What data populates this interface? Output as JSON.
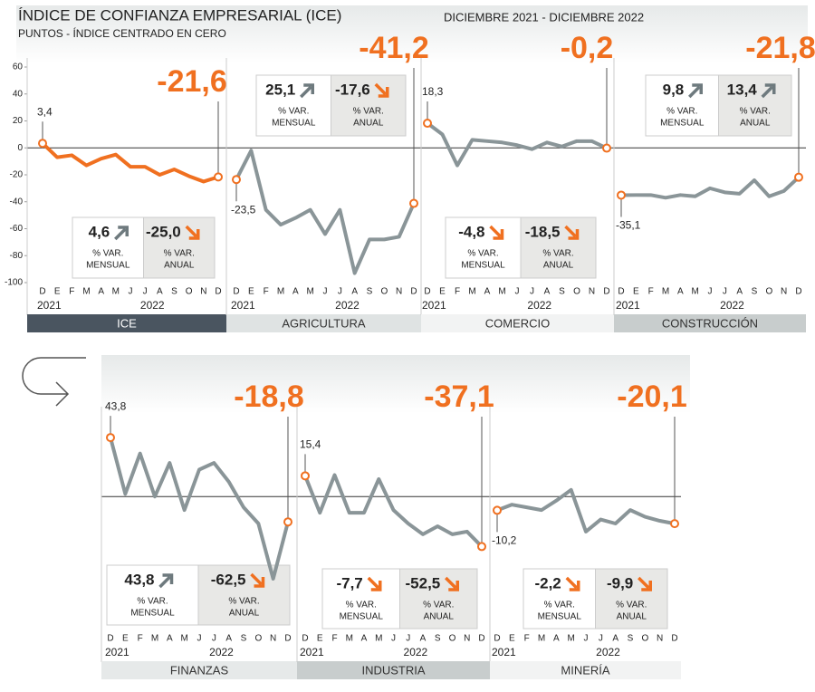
{
  "header": {
    "title": "ÍNDICE DE CONFIANZA EMPRESARIAL (ICE)",
    "subtitle": "PUNTOS - ÍNDICE CENTRADO EN CERO",
    "period": "DICIEMBRE 2021 - DICIEMBRE 2022"
  },
  "captions": {
    "var": "% VAR.",
    "monthly": "MENSUAL",
    "annual": "ANUAL"
  },
  "chart_data": [
    {
      "type": "line",
      "name": "ICE",
      "color": "#f07020",
      "categories": [
        "D",
        "E",
        "F",
        "M",
        "A",
        "M",
        "J",
        "J",
        "A",
        "S",
        "O",
        "N",
        "D"
      ],
      "years": [
        "2021",
        "2022"
      ],
      "values": [
        3.4,
        -7,
        -5.5,
        -13,
        -8,
        -5,
        -14,
        -14,
        -20,
        -16,
        -21,
        -25,
        -21.6
      ],
      "value_labels": [
        "3,4",
        null,
        null,
        null,
        null,
        null,
        null,
        null,
        null,
        null,
        null,
        null,
        "-21,6"
      ],
      "monthly": {
        "value": 4.6,
        "label": "4,6"
      },
      "annual": {
        "value": -25.0,
        "label": "-25,0"
      },
      "ylim": [
        -100,
        60
      ],
      "yticks": [
        60,
        40,
        20,
        0,
        -20,
        -40,
        -60,
        -80,
        -100
      ]
    },
    {
      "type": "line",
      "name": "AGRICULTURA",
      "color": "#8a9598",
      "categories": [
        "D",
        "E",
        "F",
        "M",
        "A",
        "M",
        "J",
        "J",
        "A",
        "S",
        "O",
        "N",
        "D"
      ],
      "years": [
        "2021",
        "2022"
      ],
      "values": [
        -23.5,
        -2,
        -46,
        -57,
        -52,
        -46,
        -64,
        -46,
        -93,
        -68,
        -68,
        -66,
        -41.2
      ],
      "value_labels": [
        "-23,5",
        null,
        null,
        null,
        null,
        null,
        null,
        null,
        null,
        null,
        null,
        null,
        "-41,2"
      ],
      "monthly": {
        "value": 25.1,
        "label": "25,1"
      },
      "annual": {
        "value": -17.6,
        "label": "-17,6"
      },
      "ylim": [
        -100,
        60
      ]
    },
    {
      "type": "line",
      "name": "COMERCIO",
      "color": "#8a9598",
      "categories": [
        "D",
        "E",
        "F",
        "M",
        "A",
        "M",
        "J",
        "J",
        "A",
        "S",
        "O",
        "N",
        "D"
      ],
      "years": [
        "2021",
        "2022"
      ],
      "values": [
        18.3,
        10,
        -13,
        6,
        5,
        4,
        2,
        -1,
        4,
        1,
        5,
        5,
        -0.2
      ],
      "value_labels": [
        "18,3",
        null,
        null,
        null,
        null,
        null,
        null,
        null,
        null,
        null,
        null,
        null,
        "-0,2"
      ],
      "monthly": {
        "value": -4.8,
        "label": "-4,8"
      },
      "annual": {
        "value": -18.5,
        "label": "-18,5"
      },
      "ylim": [
        -100,
        60
      ]
    },
    {
      "type": "line",
      "name": "CONSTRUCCIÓN",
      "color": "#8a9598",
      "categories": [
        "D",
        "E",
        "F",
        "M",
        "A",
        "M",
        "J",
        "J",
        "A",
        "S",
        "O",
        "N",
        "D"
      ],
      "years": [
        "2021",
        "2022"
      ],
      "values": [
        -35.1,
        -35,
        -35,
        -37,
        -35,
        -36,
        -30,
        -33,
        -34,
        -24,
        -36,
        -32,
        -21.8
      ],
      "value_labels": [
        "-35,1",
        null,
        null,
        null,
        null,
        null,
        null,
        null,
        null,
        null,
        null,
        null,
        "-21,8"
      ],
      "monthly": {
        "value": 9.8,
        "label": "9,8"
      },
      "annual": {
        "value": 13.4,
        "label": "13,4"
      },
      "ylim": [
        -100,
        60
      ]
    },
    {
      "type": "line",
      "name": "FINANZAS",
      "color": "#8a9598",
      "categories": [
        "D",
        "E",
        "F",
        "M",
        "A",
        "M",
        "J",
        "J",
        "A",
        "S",
        "O",
        "N",
        "D"
      ],
      "years": [
        "2021",
        "2022"
      ],
      "values": [
        43.8,
        2,
        32,
        0,
        25,
        -10,
        20,
        25,
        11,
        -8,
        -20,
        -61,
        -18.8
      ],
      "value_labels": [
        "43,8",
        null,
        null,
        null,
        null,
        null,
        null,
        null,
        null,
        null,
        null,
        null,
        "-18,8"
      ],
      "monthly": {
        "value": 43.8,
        "label": "43,8"
      },
      "annual": {
        "value": -62.5,
        "label": "-62,5"
      },
      "ylim": [
        -100,
        60
      ]
    },
    {
      "type": "line",
      "name": "INDUSTRIA",
      "color": "#8a9598",
      "categories": [
        "D",
        "E",
        "F",
        "M",
        "A",
        "M",
        "J",
        "J",
        "A",
        "S",
        "O",
        "N",
        "D"
      ],
      "years": [
        "2021",
        "2022"
      ],
      "values": [
        15.4,
        -12,
        16,
        -12,
        -12,
        13,
        -10,
        -20,
        -28,
        -22,
        -28,
        -26,
        -37.1
      ],
      "value_labels": [
        "15,4",
        null,
        null,
        null,
        null,
        null,
        null,
        null,
        null,
        null,
        null,
        null,
        "-37,1"
      ],
      "monthly": {
        "value": -7.7,
        "label": "-7,7"
      },
      "annual": {
        "value": -52.5,
        "label": "-52,5"
      },
      "ylim": [
        -100,
        60
      ]
    },
    {
      "type": "line",
      "name": "MINERÍA",
      "color": "#8a9598",
      "categories": [
        "D",
        "E",
        "F",
        "M",
        "A",
        "M",
        "J",
        "J",
        "A",
        "S",
        "O",
        "N",
        "D"
      ],
      "years": [
        "2021",
        "2022"
      ],
      "values": [
        -10.2,
        -6,
        -8,
        -10,
        -3,
        5,
        -26,
        -17,
        -20,
        -10,
        -15,
        -18,
        -20.1
      ],
      "value_labels": [
        "-10,2",
        null,
        null,
        null,
        null,
        null,
        null,
        null,
        null,
        null,
        null,
        null,
        "-20,1"
      ],
      "monthly": {
        "value": -2.2,
        "label": "-2,2"
      },
      "annual": {
        "value": -9.9,
        "label": "-9,9"
      },
      "ylim": [
        -100,
        60
      ]
    }
  ]
}
